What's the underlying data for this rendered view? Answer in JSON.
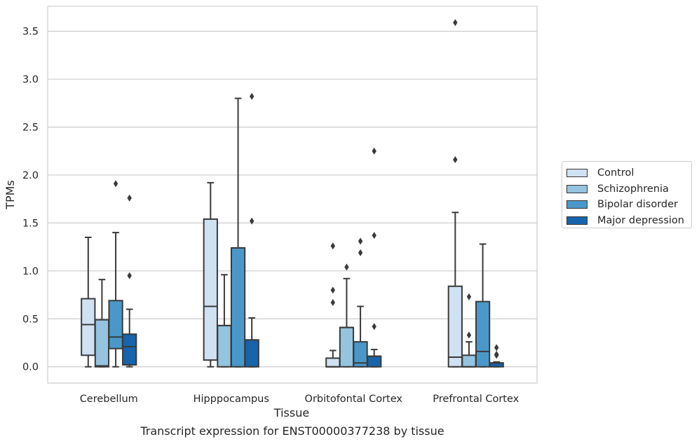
{
  "caption": "Transcript expression for ENST00000377238 by tissue",
  "chart_data": {
    "type": "boxplot",
    "xlabel": "Tissue",
    "ylabel": "TPMs",
    "ylim": [
      -0.17,
      3.76
    ],
    "yticks": [
      "0.0",
      "0.5",
      "1.0",
      "1.5",
      "2.0",
      "2.5",
      "3.0",
      "3.5"
    ],
    "grid": true,
    "legend_position": "right",
    "categories": [
      "Cerebellum",
      "Hipppocampus",
      "Orbitofontal Cortex",
      "Prefrontal Cortex"
    ],
    "series": [
      {
        "name": "Control",
        "color": "#d0e1f2",
        "boxes": [
          {
            "whislo": 0.0,
            "q1": 0.12,
            "med": 0.44,
            "q3": 0.71,
            "whishi": 1.35,
            "fliers": []
          },
          {
            "whislo": 0.0,
            "q1": 0.07,
            "med": 0.63,
            "q3": 1.54,
            "whishi": 1.92,
            "fliers": []
          },
          {
            "whislo": 0.0,
            "q1": 0.0,
            "med": 0.0,
            "q3": 0.09,
            "whishi": 0.17,
            "fliers": [
              0.67,
              0.8,
              1.26
            ]
          },
          {
            "whislo": 0.0,
            "q1": 0.0,
            "med": 0.1,
            "q3": 0.84,
            "whishi": 1.61,
            "fliers": [
              2.16,
              3.59
            ]
          }
        ]
      },
      {
        "name": "Schizophrenia",
        "color": "#94c4df",
        "boxes": [
          {
            "whislo": 0.0,
            "q1": 0.0,
            "med": 0.01,
            "q3": 0.49,
            "whishi": 0.91,
            "fliers": []
          },
          {
            "whislo": 0.0,
            "q1": 0.0,
            "med": 0.43,
            "q3": 0.43,
            "whishi": 0.96,
            "fliers": []
          },
          {
            "whislo": 0.0,
            "q1": 0.0,
            "med": 0.41,
            "q3": 0.41,
            "whishi": 0.92,
            "fliers": [
              1.04
            ]
          },
          {
            "whislo": 0.0,
            "q1": 0.0,
            "med": 0.0,
            "q3": 0.12,
            "whishi": 0.26,
            "fliers": [
              0.33,
              0.73
            ]
          }
        ]
      },
      {
        "name": "Bipolar disorder",
        "color": "#4a98c9",
        "boxes": [
          {
            "whislo": 0.0,
            "q1": 0.19,
            "med": 0.31,
            "q3": 0.69,
            "whishi": 1.4,
            "fliers": [
              1.91
            ]
          },
          {
            "whislo": 0.0,
            "q1": 0.0,
            "med": 1.24,
            "q3": 1.24,
            "whishi": 2.8,
            "fliers": []
          },
          {
            "whislo": 0.0,
            "q1": 0.0,
            "med": 0.04,
            "q3": 0.26,
            "whishi": 0.63,
            "fliers": [
              1.19,
              1.31
            ]
          },
          {
            "whislo": 0.0,
            "q1": 0.0,
            "med": 0.16,
            "q3": 0.68,
            "whishi": 1.28,
            "fliers": []
          }
        ]
      },
      {
        "name": "Major depression",
        "color": "#1764ab",
        "boxes": [
          {
            "whislo": 0.0,
            "q1": 0.02,
            "med": 0.21,
            "q3": 0.34,
            "whishi": 0.6,
            "fliers": [
              0.95,
              1.76
            ]
          },
          {
            "whislo": 0.0,
            "q1": 0.0,
            "med": 0.28,
            "q3": 0.28,
            "whishi": 0.51,
            "fliers": [
              1.52,
              2.82
            ]
          },
          {
            "whislo": 0.0,
            "q1": 0.0,
            "med": 0.11,
            "q3": 0.11,
            "whishi": 0.18,
            "fliers": [
              0.42,
              1.37,
              2.25
            ]
          },
          {
            "whislo": 0.0,
            "q1": 0.0,
            "med": 0.04,
            "q3": 0.04,
            "whishi": 0.05,
            "fliers": [
              0.12,
              0.13,
              0.2
            ]
          }
        ]
      }
    ]
  }
}
